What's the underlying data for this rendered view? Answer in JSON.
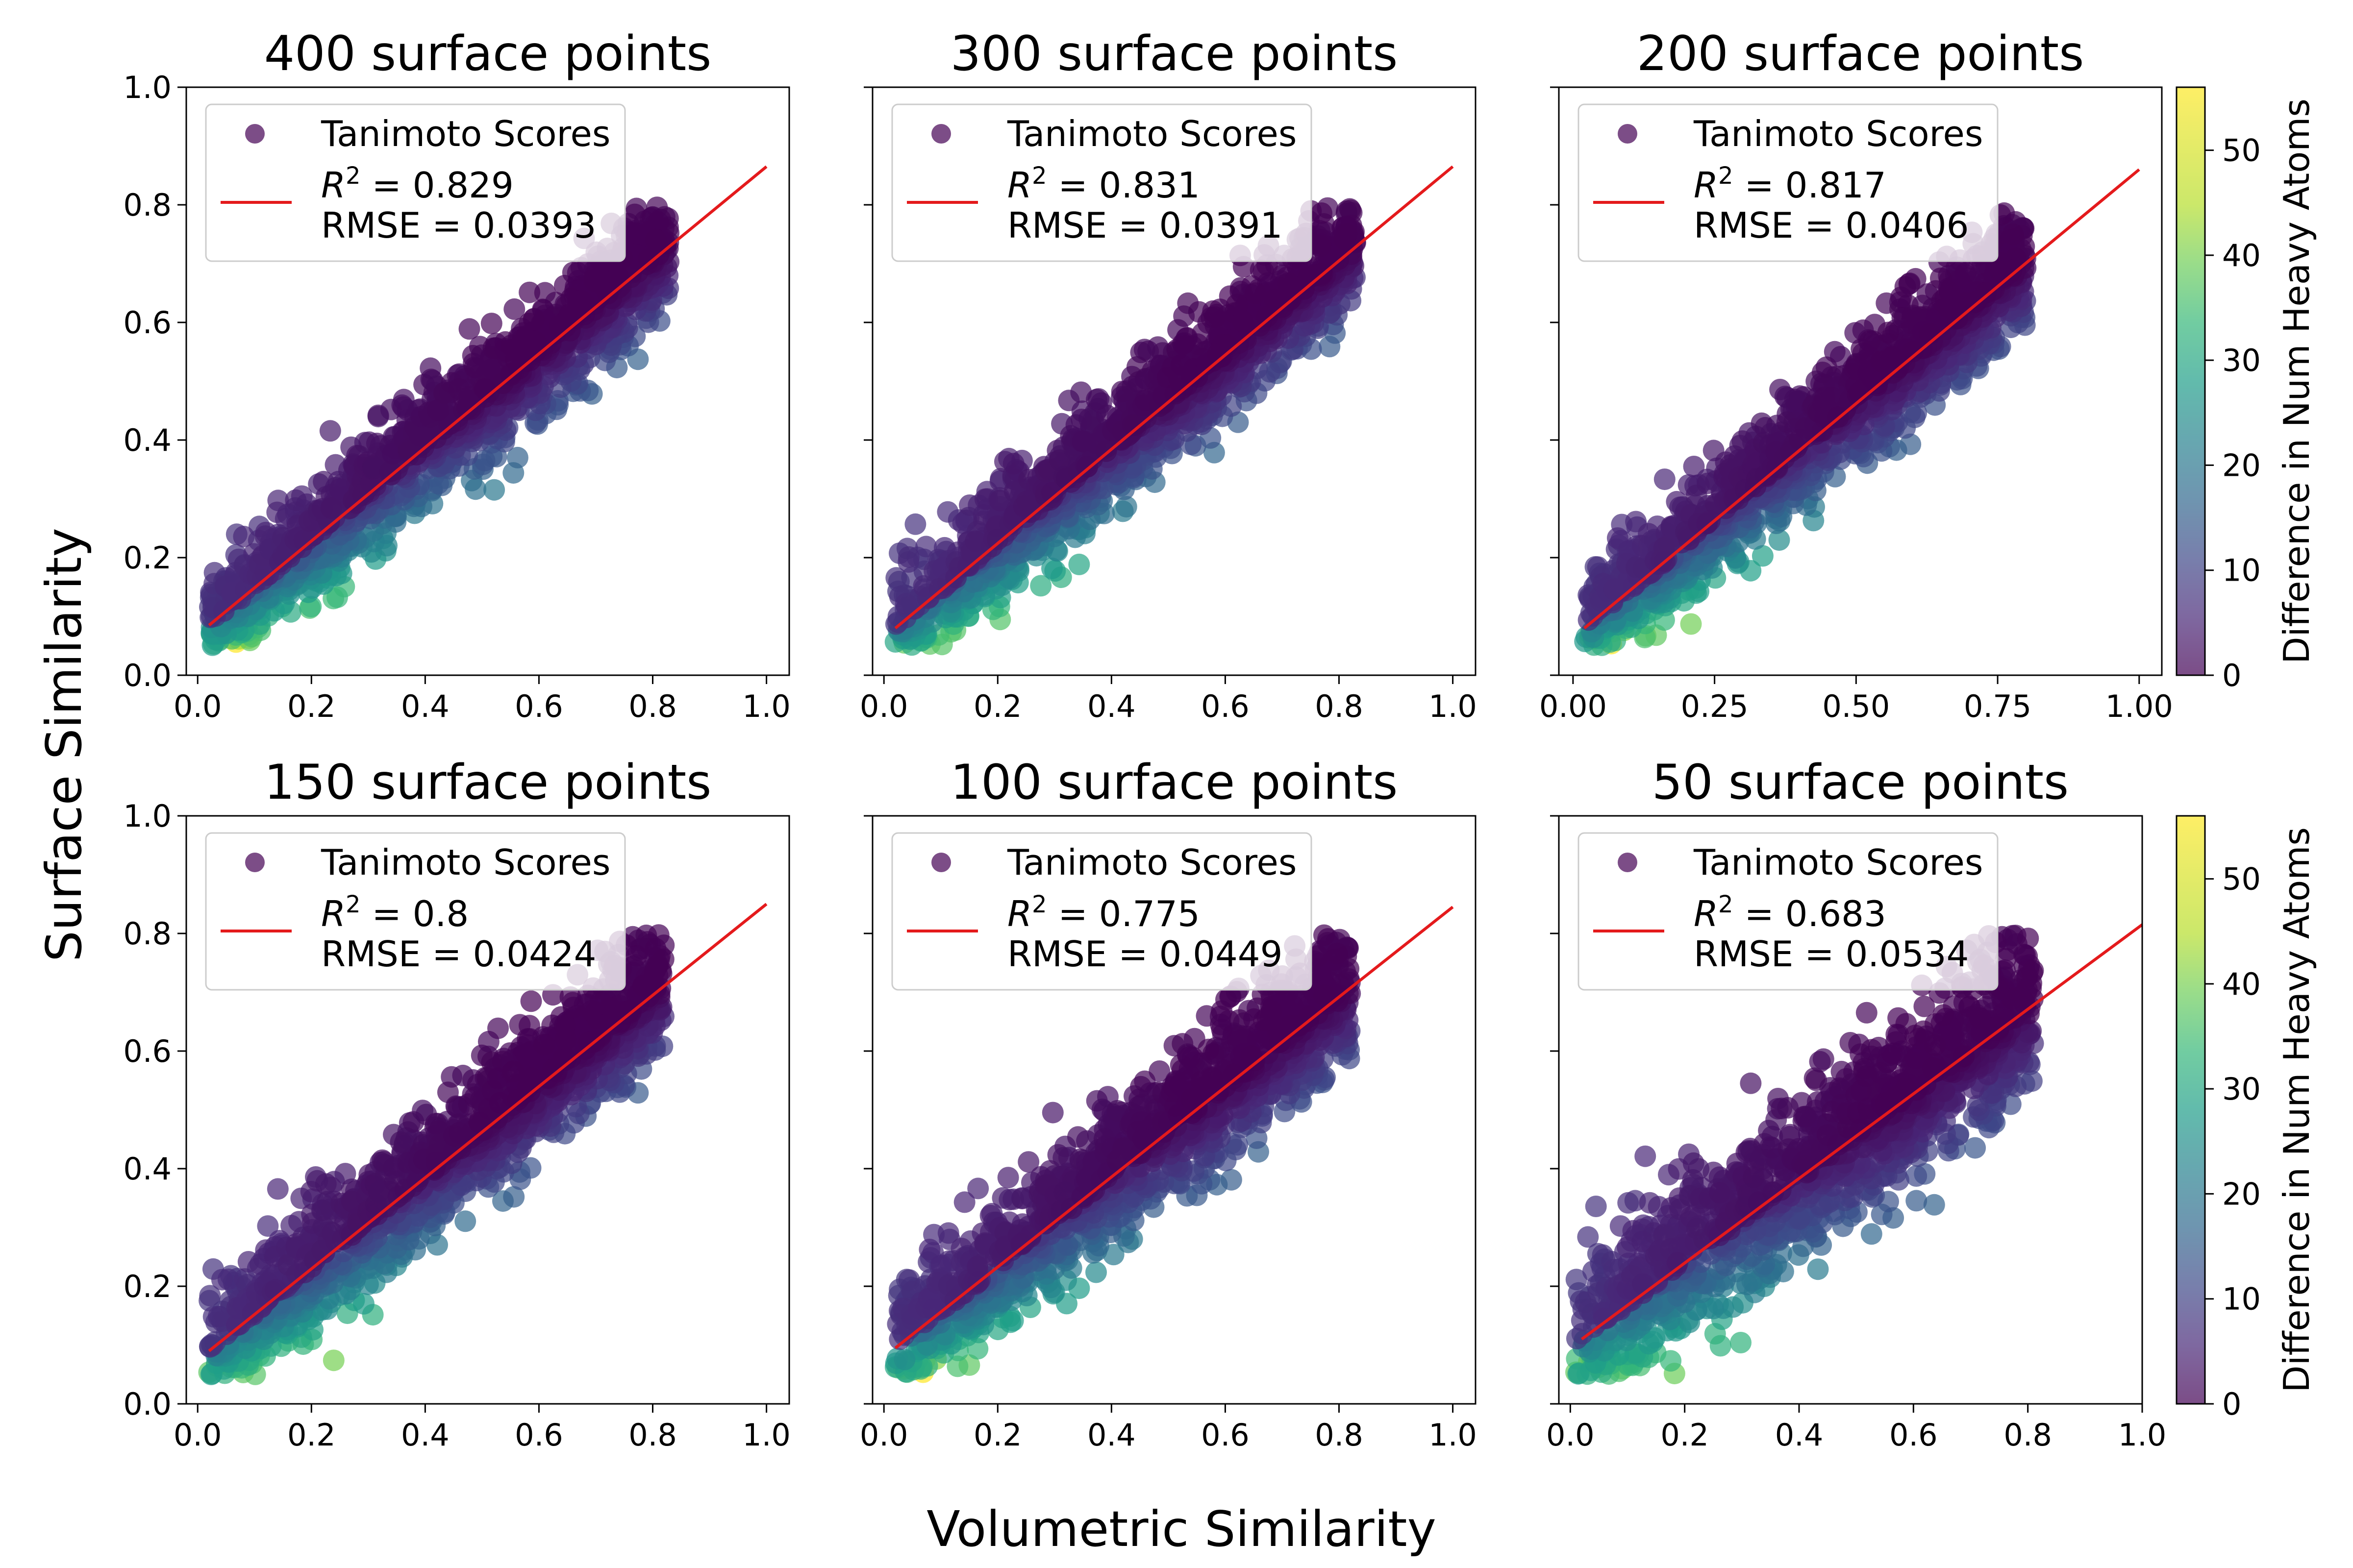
{
  "figure": {
    "xlabel": "Volumetric Similarity",
    "ylabel": "Surface Similarity"
  },
  "colorbar": {
    "label": "Difference in Num Heavy Atoms",
    "ticks": [
      "0",
      "10",
      "20",
      "30",
      "40",
      "50"
    ],
    "range": [
      0,
      56
    ],
    "colormap": "viridis",
    "alpha": 0.7
  },
  "legend": {
    "scatter_label": "Tanimoto Scores",
    "r2_prefix": "R",
    "r2_sup": "2",
    "rmse_prefix": "RMSE = ",
    "marker_color": "#440154",
    "line_color": "#e41a1c"
  },
  "chart_data": [
    {
      "type": "scatter",
      "title": "400 surface points",
      "r2": "0.829",
      "rmse": "0.0393",
      "xlim": [
        -0.02,
        1.04
      ],
      "ylim": [
        0,
        1.0
      ],
      "xticks": [
        "0.0",
        "0.2",
        "0.4",
        "0.6",
        "0.8",
        "1.0"
      ],
      "xtick_values": [
        0,
        0.2,
        0.4,
        0.6,
        0.8,
        1.0
      ],
      "yticks": [
        "0.0",
        "0.2",
        "0.4",
        "0.6",
        "0.8",
        "1.0"
      ],
      "ytick_values": [
        0,
        0.2,
        0.4,
        0.6,
        0.8,
        1.0
      ],
      "fit_line": {
        "x": [
          0.02,
          1.0
        ],
        "y": [
          0.085,
          0.865
        ]
      },
      "point_cloud": {
        "x_range": [
          0.02,
          0.83
        ],
        "residual_sd": 0.05,
        "count": 1300
      }
    },
    {
      "type": "scatter",
      "title": "300 surface points",
      "r2": "0.831",
      "rmse": "0.0391",
      "xlim": [
        -0.02,
        1.04
      ],
      "ylim": [
        0,
        1.0
      ],
      "xticks": [
        "0.0",
        "0.2",
        "0.4",
        "0.6",
        "0.8",
        "1.0"
      ],
      "xtick_values": [
        0,
        0.2,
        0.4,
        0.6,
        0.8,
        1.0
      ],
      "yticks": [],
      "ytick_values": [
        0,
        0.2,
        0.4,
        0.6,
        0.8,
        1.0
      ],
      "fit_line": {
        "x": [
          0.02,
          1.0
        ],
        "y": [
          0.08,
          0.865
        ]
      },
      "point_cloud": {
        "x_range": [
          0.02,
          0.83
        ],
        "residual_sd": 0.05,
        "count": 1300
      }
    },
    {
      "type": "scatter",
      "title": "200 surface points",
      "r2": "0.817",
      "rmse": "0.0406",
      "xlim": [
        -0.025,
        1.04
      ],
      "ylim": [
        0,
        1.0
      ],
      "xticks": [
        "0.00",
        "0.25",
        "0.50",
        "0.75",
        "1.00"
      ],
      "xtick_values": [
        0,
        0.25,
        0.5,
        0.75,
        1.0
      ],
      "yticks": [],
      "ytick_values": [
        0,
        0.2,
        0.4,
        0.6,
        0.8,
        1.0
      ],
      "fit_line": {
        "x": [
          0.02,
          1.0
        ],
        "y": [
          0.08,
          0.86
        ]
      },
      "point_cloud": {
        "x_range": [
          0.02,
          0.8
        ],
        "residual_sd": 0.05,
        "count": 1300
      }
    },
    {
      "type": "scatter",
      "title": "150 surface points",
      "r2": "0.8",
      "rmse": "0.0424",
      "xlim": [
        -0.02,
        1.04
      ],
      "ylim": [
        0,
        1.0
      ],
      "xticks": [
        "0.0",
        "0.2",
        "0.4",
        "0.6",
        "0.8",
        "1.0"
      ],
      "xtick_values": [
        0,
        0.2,
        0.4,
        0.6,
        0.8,
        1.0
      ],
      "yticks": [
        "0.0",
        "0.2",
        "0.4",
        "0.6",
        "0.8",
        "1.0"
      ],
      "ytick_values": [
        0,
        0.2,
        0.4,
        0.6,
        0.8,
        1.0
      ],
      "fit_line": {
        "x": [
          0.02,
          1.0
        ],
        "y": [
          0.09,
          0.85
        ]
      },
      "point_cloud": {
        "x_range": [
          0.02,
          0.82
        ],
        "residual_sd": 0.055,
        "count": 1300
      }
    },
    {
      "type": "scatter",
      "title": "100 surface points",
      "r2": "0.775",
      "rmse": "0.0449",
      "xlim": [
        -0.02,
        1.04
      ],
      "ylim": [
        0,
        1.0
      ],
      "xticks": [
        "0.0",
        "0.2",
        "0.4",
        "0.6",
        "0.8",
        "1.0"
      ],
      "xtick_values": [
        0,
        0.2,
        0.4,
        0.6,
        0.8,
        1.0
      ],
      "yticks": [],
      "ytick_values": [
        0,
        0.2,
        0.4,
        0.6,
        0.8,
        1.0
      ],
      "fit_line": {
        "x": [
          0.02,
          1.0
        ],
        "y": [
          0.095,
          0.845
        ]
      },
      "point_cloud": {
        "x_range": [
          0.02,
          0.82
        ],
        "residual_sd": 0.057,
        "count": 1300
      }
    },
    {
      "type": "scatter",
      "title": "50 surface points",
      "r2": "0.683",
      "rmse": "0.0534",
      "xlim": [
        -0.02,
        1.0
      ],
      "ylim": [
        0,
        1.0
      ],
      "xticks": [
        "0.0",
        "0.2",
        "0.4",
        "0.6",
        "0.8",
        "1.0"
      ],
      "xtick_values": [
        0,
        0.2,
        0.4,
        0.6,
        0.8,
        1.0
      ],
      "yticks": [],
      "ytick_values": [
        0,
        0.2,
        0.4,
        0.6,
        0.8,
        1.0
      ],
      "fit_line": {
        "x": [
          0.02,
          1.0
        ],
        "y": [
          0.11,
          0.815
        ]
      },
      "point_cloud": {
        "x_range": [
          0.01,
          0.81
        ],
        "residual_sd": 0.07,
        "count": 1300
      }
    }
  ]
}
